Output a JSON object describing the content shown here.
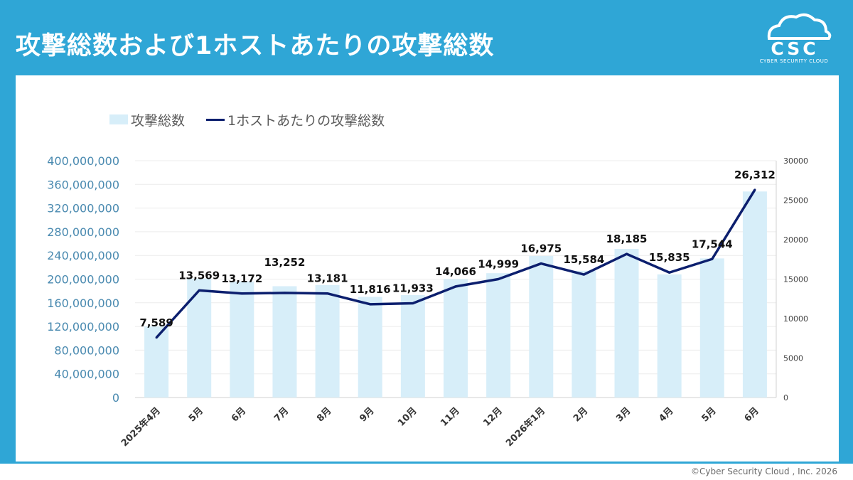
{
  "title": "攻撃総数および1ホストあたりの攻撃総数",
  "logo": {
    "mark": "CSC",
    "subtitle": "CYBER SECURITY CLOUD"
  },
  "copyright": "©Cyber Security Cloud , Inc. 2026",
  "colors": {
    "background": "#2fa6d6",
    "bar": "#d7eef9",
    "line": "#0c1f6e"
  },
  "chart_data": {
    "type": "bar",
    "categories": [
      "2025年4月",
      "5月",
      "6月",
      "7月",
      "8月",
      "9月",
      "10月",
      "11月",
      "12月",
      "2026年1月",
      "2月",
      "3月",
      "4月",
      "5月",
      "6月"
    ],
    "series": [
      {
        "name": "攻撃総数",
        "type": "bar",
        "axis": "left",
        "values": [
          120000000,
          201000000,
          196000000,
          188000000,
          190000000,
          170000000,
          173000000,
          200000000,
          210000000,
          239000000,
          214000000,
          251000000,
          208000000,
          235000000,
          348000000
        ]
      },
      {
        "name": "1ホストあたりの攻撃総数",
        "type": "line",
        "axis": "right",
        "values": [
          7589,
          13569,
          13172,
          13252,
          13181,
          11816,
          11933,
          14066,
          14999,
          16975,
          15584,
          18185,
          15835,
          17544,
          26312
        ],
        "labels": [
          "7,589",
          "13,569",
          "13,172",
          "13,252",
          "13,181",
          "11,816",
          "11,933",
          "14,066",
          "14,999",
          "16,975",
          "15,584",
          "18,185",
          "15,835",
          "17,544",
          "26,312"
        ]
      }
    ],
    "y_left": {
      "lim": [
        0,
        400000000
      ],
      "ticks": [
        "0",
        "40,000,000",
        "80,000,000",
        "120,000,000",
        "160,000,000",
        "200,000,000",
        "240,000,000",
        "280,000,000",
        "320,000,000",
        "360,000,000",
        "400,000,000"
      ]
    },
    "y_right": {
      "lim": [
        0,
        30000
      ],
      "ticks": [
        "0",
        "5000",
        "10000",
        "15000",
        "20000",
        "25000",
        "30000"
      ]
    },
    "legend": "top-left",
    "grid": true
  }
}
